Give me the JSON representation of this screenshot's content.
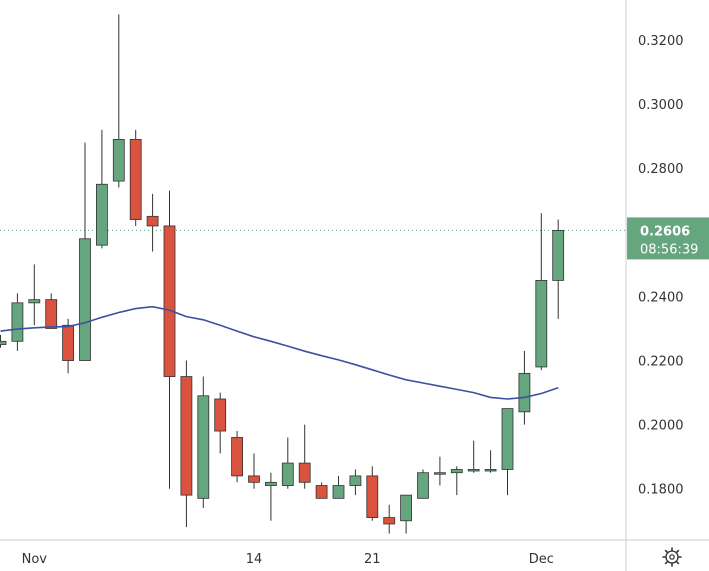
{
  "chart_data": {
    "type": "candlestick",
    "title": "",
    "xlabel": "",
    "ylabel": "",
    "ylim": [
      0.164,
      0.3325
    ],
    "y_ticks": [
      "0.3200",
      "0.3000",
      "0.2800",
      "0.2600",
      "0.2400",
      "0.2200",
      "0.2000",
      "0.1800"
    ],
    "y_tick_values": [
      0.32,
      0.3,
      0.28,
      0.26,
      0.24,
      0.22,
      0.2,
      0.18
    ],
    "x_ticks": [
      {
        "label": "Nov",
        "index": 2
      },
      {
        "label": "14",
        "index": 15
      },
      {
        "label": "21",
        "index": 22
      },
      {
        "label": "Dec",
        "index": 32
      }
    ],
    "current_price": "0.2606",
    "current_price_value": 0.2606,
    "countdown": "08:56:39",
    "colors": {
      "up": "#66a67e",
      "down": "#d9533f",
      "ma": "#3d51a0",
      "badge": "#66a67e",
      "axis_text": "#333333",
      "grid_border": "#cccccc"
    },
    "candles": [
      {
        "o": 0.225,
        "h": 0.228,
        "l": 0.224,
        "c": 0.226
      },
      {
        "o": 0.226,
        "h": 0.241,
        "l": 0.223,
        "c": 0.238
      },
      {
        "o": 0.238,
        "h": 0.25,
        "l": 0.231,
        "c": 0.239
      },
      {
        "o": 0.239,
        "h": 0.241,
        "l": 0.23,
        "c": 0.23
      },
      {
        "o": 0.231,
        "h": 0.233,
        "l": 0.216,
        "c": 0.22
      },
      {
        "o": 0.22,
        "h": 0.288,
        "l": 0.22,
        "c": 0.258
      },
      {
        "o": 0.256,
        "h": 0.292,
        "l": 0.255,
        "c": 0.275
      },
      {
        "o": 0.276,
        "h": 0.328,
        "l": 0.274,
        "c": 0.289
      },
      {
        "o": 0.289,
        "h": 0.292,
        "l": 0.262,
        "c": 0.264
      },
      {
        "o": 0.265,
        "h": 0.272,
        "l": 0.254,
        "c": 0.262
      },
      {
        "o": 0.262,
        "h": 0.273,
        "l": 0.18,
        "c": 0.215
      },
      {
        "o": 0.215,
        "h": 0.22,
        "l": 0.168,
        "c": 0.178
      },
      {
        "o": 0.177,
        "h": 0.215,
        "l": 0.174,
        "c": 0.209
      },
      {
        "o": 0.208,
        "h": 0.21,
        "l": 0.191,
        "c": 0.198
      },
      {
        "o": 0.196,
        "h": 0.198,
        "l": 0.182,
        "c": 0.184
      },
      {
        "o": 0.184,
        "h": 0.191,
        "l": 0.18,
        "c": 0.182
      },
      {
        "o": 0.181,
        "h": 0.185,
        "l": 0.17,
        "c": 0.182
      },
      {
        "o": 0.181,
        "h": 0.196,
        "l": 0.18,
        "c": 0.188
      },
      {
        "o": 0.188,
        "h": 0.2,
        "l": 0.18,
        "c": 0.182
      },
      {
        "o": 0.181,
        "h": 0.182,
        "l": 0.177,
        "c": 0.177
      },
      {
        "o": 0.177,
        "h": 0.184,
        "l": 0.177,
        "c": 0.181
      },
      {
        "o": 0.181,
        "h": 0.186,
        "l": 0.178,
        "c": 0.184
      },
      {
        "o": 0.184,
        "h": 0.187,
        "l": 0.17,
        "c": 0.171
      },
      {
        "o": 0.171,
        "h": 0.175,
        "l": 0.166,
        "c": 0.169
      },
      {
        "o": 0.17,
        "h": 0.178,
        "l": 0.166,
        "c": 0.178
      },
      {
        "o": 0.177,
        "h": 0.186,
        "l": 0.177,
        "c": 0.185
      },
      {
        "o": 0.185,
        "h": 0.19,
        "l": 0.181,
        "c": 0.185
      },
      {
        "o": 0.185,
        "h": 0.187,
        "l": 0.178,
        "c": 0.186
      },
      {
        "o": 0.186,
        "h": 0.195,
        "l": 0.185,
        "c": 0.186
      },
      {
        "o": 0.186,
        "h": 0.192,
        "l": 0.185,
        "c": 0.186
      },
      {
        "o": 0.186,
        "h": 0.205,
        "l": 0.178,
        "c": 0.205
      },
      {
        "o": 0.204,
        "h": 0.223,
        "l": 0.2,
        "c": 0.216
      },
      {
        "o": 0.218,
        "h": 0.266,
        "l": 0.217,
        "c": 0.245
      },
      {
        "o": 0.245,
        "h": 0.264,
        "l": 0.233,
        "c": 0.2606
      }
    ],
    "moving_average": [
      0.2292,
      0.2298,
      0.2302,
      0.2305,
      0.2306,
      0.2318,
      0.2335,
      0.235,
      0.2362,
      0.2368,
      0.2357,
      0.2337,
      0.2327,
      0.231,
      0.2292,
      0.2274,
      0.226,
      0.2245,
      0.2229,
      0.2215,
      0.2202,
      0.2187,
      0.2171,
      0.2155,
      0.214,
      0.213,
      0.212,
      0.211,
      0.21,
      0.2085,
      0.208,
      0.2085,
      0.2097,
      0.2115
    ]
  }
}
